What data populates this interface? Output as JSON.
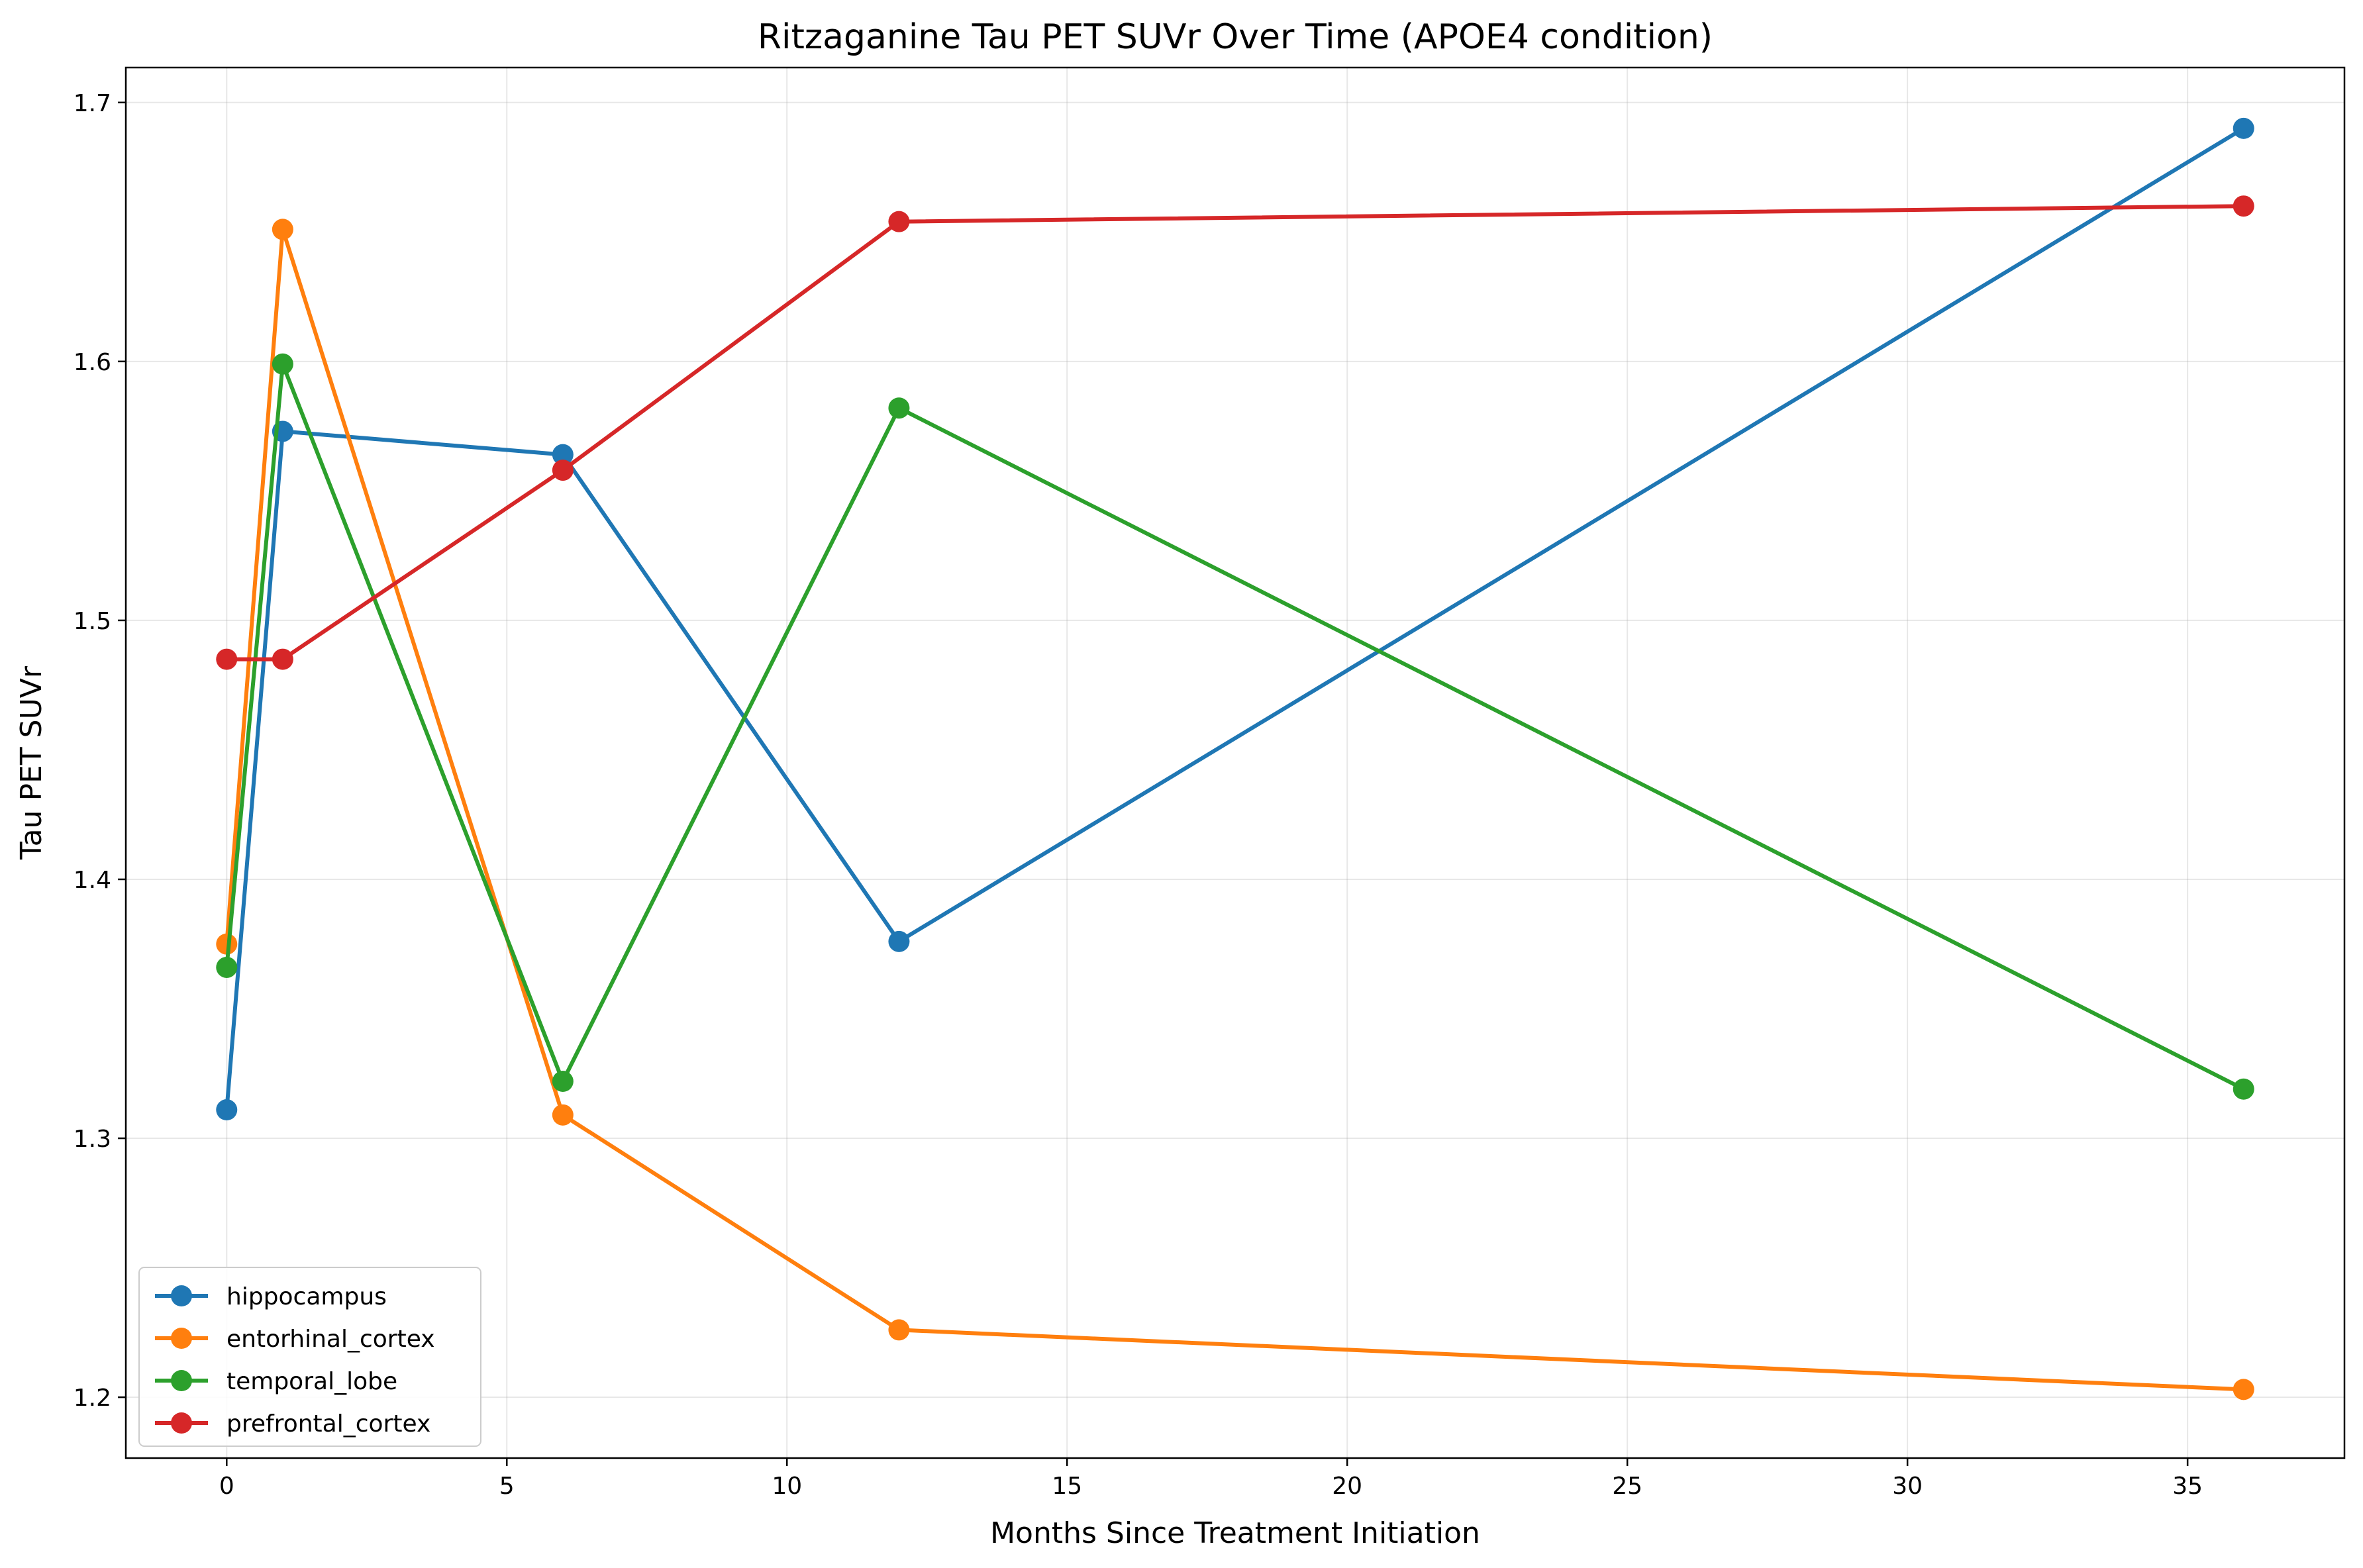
{
  "chart_data": {
    "type": "line",
    "title": "Ritzaganine Tau PET SUVr Over Time (APOE4 condition)",
    "xlabel": "Months Since Treatment Initiation",
    "ylabel": "Tau PET SUVr",
    "xlim": [
      -1.8,
      37.8
    ],
    "ylim": [
      1.1765,
      1.7135
    ],
    "xticks": [
      0,
      5,
      10,
      15,
      20,
      25,
      30,
      35
    ],
    "yticks": [
      1.2,
      1.3,
      1.4,
      1.5,
      1.6,
      1.7
    ],
    "grid": true,
    "legend_position": "lower-left",
    "x": [
      0,
      1,
      6,
      12,
      36
    ],
    "series": [
      {
        "name": "hippocampus",
        "color": "#1f77b4",
        "values": [
          1.311,
          1.573,
          1.564,
          1.376,
          1.69
        ]
      },
      {
        "name": "entorhinal_cortex",
        "color": "#ff7f0e",
        "values": [
          1.375,
          1.651,
          1.309,
          1.226,
          1.203
        ]
      },
      {
        "name": "temporal_lobe",
        "color": "#2ca02c",
        "values": [
          1.366,
          1.599,
          1.322,
          1.582,
          1.319
        ]
      },
      {
        "name": "prefrontal_cortex",
        "color": "#d62728",
        "values": [
          1.485,
          1.485,
          1.558,
          1.654,
          1.66
        ]
      }
    ]
  }
}
